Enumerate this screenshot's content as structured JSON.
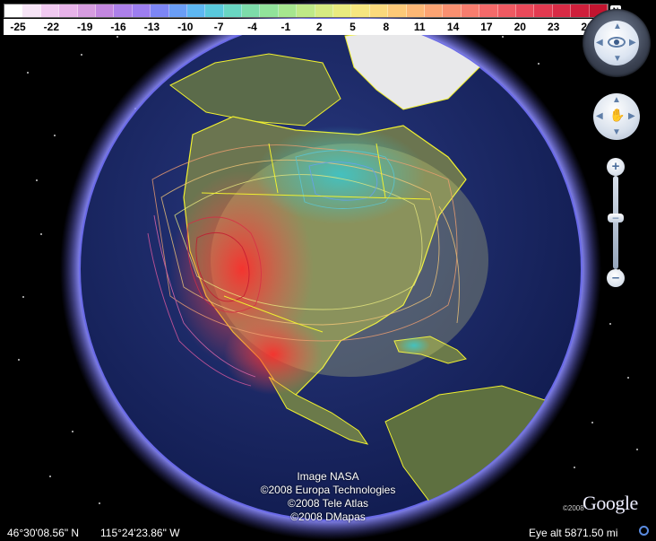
{
  "colorbar": {
    "labels": [
      "-25",
      "-22",
      "-19",
      "-16",
      "-13",
      "-10",
      "-7",
      "-4",
      "-1",
      "2",
      "5",
      "8",
      "11",
      "14",
      "17",
      "20",
      "23",
      "26"
    ],
    "colors": [
      "#ffffff",
      "#f6e4f6",
      "#f0c9f0",
      "#e7b3e9",
      "#d69ce0",
      "#c387e0",
      "#ad80ea",
      "#9d7ef0",
      "#7d86f6",
      "#6a9ef6",
      "#5db7f2",
      "#59c9dc",
      "#69d6c2",
      "#7ddcaa",
      "#91e29a",
      "#a6e68e",
      "#bfe987",
      "#d6ea82",
      "#e9ea7f",
      "#f6e680",
      "#fbd97c",
      "#fdc978",
      "#fdb775",
      "#fca473",
      "#fa9070",
      "#f77d6e",
      "#f46a6a",
      "#f05a62",
      "#ea4a5a",
      "#e23a50",
      "#d82b45",
      "#cf1f3b",
      "#c3142f"
    ],
    "north_label": "N"
  },
  "attribution": {
    "line1": "Image NASA",
    "line2": "©2008 Europa Technologies",
    "line3": "©2008 Tele Atlas",
    "line4": "©2008 DMapas"
  },
  "logo": {
    "brand": "Google",
    "copyright_year": "©2008"
  },
  "status": {
    "latitude": "46°30'08.56\" N",
    "longitude": "115°24'23.86\" W",
    "eye_alt": "Eye alt  5871.50 mi"
  },
  "colors": {
    "ocean": "#1a2a66",
    "atmosphere": "#7f7ff0",
    "borders": "#f0f030"
  }
}
